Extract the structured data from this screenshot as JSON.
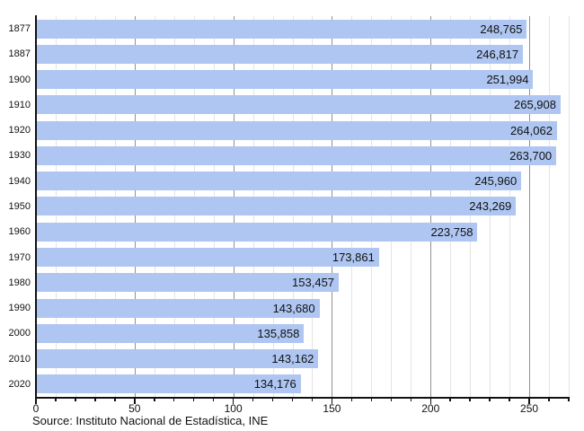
{
  "chart_data": {
    "type": "bar",
    "orientation": "horizontal",
    "title": "",
    "categories": [
      "1877",
      "1887",
      "1900",
      "1910",
      "1920",
      "1930",
      "1940",
      "1950",
      "1960",
      "1970",
      "1980",
      "1990",
      "2000",
      "2010",
      "2020"
    ],
    "values": [
      248765,
      246817,
      251994,
      265908,
      264062,
      263700,
      245960,
      243269,
      223758,
      173861,
      153457,
      143680,
      135858,
      143162,
      134176
    ],
    "value_labels": [
      "248,765",
      "246,817",
      "251,994",
      "265,908",
      "264,062",
      "263,700",
      "245,960",
      "243,269",
      "223,758",
      "173,861",
      "153,457",
      "143,680",
      "135,858",
      "143,162",
      "134,176"
    ],
    "x_axis": {
      "tick_values": [
        0,
        50,
        100,
        150,
        200,
        250
      ],
      "tick_labels": [
        "0",
        "50",
        "100",
        "150",
        "200",
        "250"
      ],
      "minor_tick_step": 10,
      "major_tick_step": 50,
      "xlim": [
        0,
        270
      ],
      "unit": "thousands"
    },
    "grid": {
      "minor_every": 10,
      "major_every": 50,
      "enabled": true
    },
    "legend": "none",
    "colors": {
      "bar_fill": "#aec6f1",
      "minor_gridline": "#e4e4e4",
      "major_gridline": "#909090",
      "axis": "#111111",
      "text": "#111111"
    }
  },
  "caption": {
    "source": "Source: Instituto Nacional de Estadística, INE"
  }
}
